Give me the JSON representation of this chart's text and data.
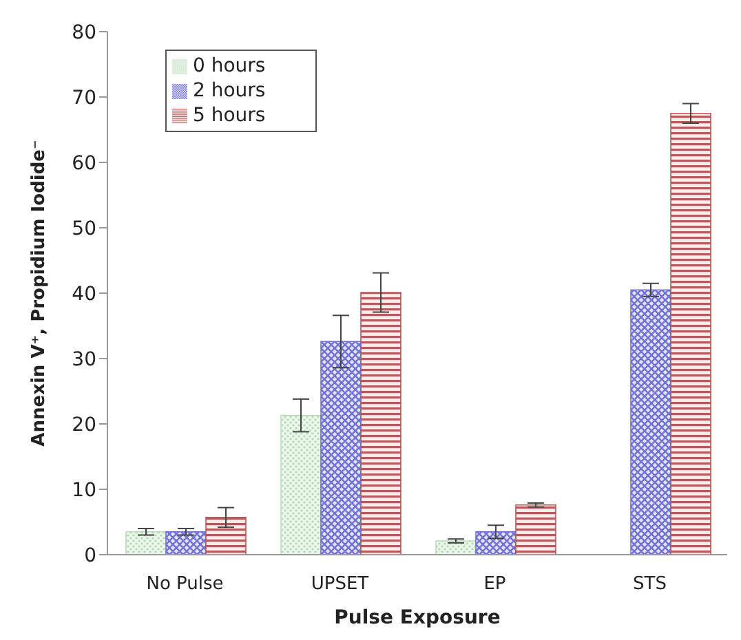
{
  "chart_data": {
    "type": "bar",
    "xlabel": "Pulse Exposure",
    "ylabel": "Annexin V⁺, Propidium Iodide⁻",
    "categories": [
      "No Pulse",
      "UPSET",
      "EP",
      "STS"
    ],
    "ylim": [
      0,
      80
    ],
    "yticks": [
      0,
      10,
      20,
      30,
      40,
      50,
      60,
      70,
      80
    ],
    "legend": "top left",
    "series": [
      {
        "name": "0 hours",
        "color": "#b8dcb8",
        "values": [
          3.5,
          21.3,
          2.1,
          null
        ],
        "errors": [
          0.5,
          2.5,
          0.3,
          null
        ]
      },
      {
        "name": "2 hours",
        "color": "#7070d8",
        "values": [
          3.5,
          32.6,
          3.5,
          40.5
        ],
        "errors": [
          0.5,
          4,
          1,
          1
        ]
      },
      {
        "name": "5 hours",
        "color": "#b85858",
        "values": [
          5.7,
          40.1,
          7.6,
          67.5
        ],
        "errors": [
          1.5,
          3,
          0.3,
          1.5
        ]
      }
    ]
  }
}
